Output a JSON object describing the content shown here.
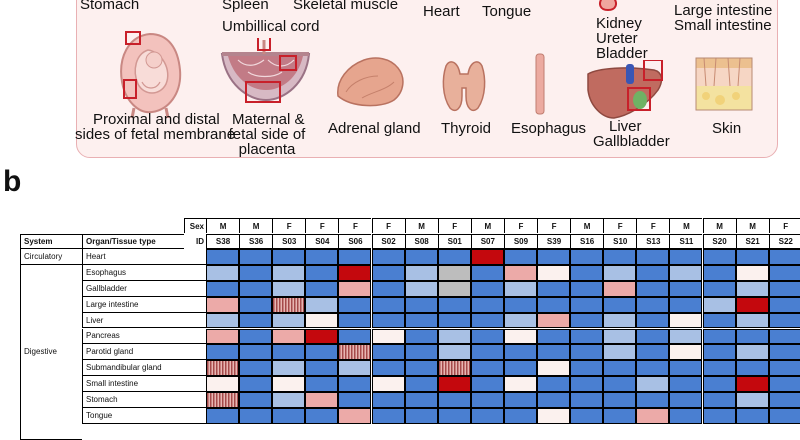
{
  "panel_a": {
    "labels": {
      "stomach": "Stomach",
      "spleen": "Spleen",
      "skeletal_muscle": "Skeletal muscle",
      "heart": "Heart",
      "tongue": "Tongue",
      "kidney": "Kidney",
      "ureter": "Ureter",
      "bladder": "Bladder",
      "large_intestine": "Large intestine",
      "small_intestine": "Small intestine",
      "umbilical_cord": "Umbillical cord",
      "fetal_membrane_1": "Proximal and distal",
      "fetal_membrane_2": "sides of fetal membrane",
      "placenta_1": "Maternal &",
      "placenta_2": "fetal side of",
      "placenta_3": "placenta",
      "adrenal": "Adrenal gland",
      "thyroid": "Thyroid",
      "esophagus": "Esophagus",
      "liver": "Liver",
      "gallbladder": "Gallbladder",
      "skin": "Skin"
    },
    "colors": {
      "panel_bg": "#fdf0ef",
      "panel_border": "#e9b0b3",
      "highlight": "#c8202a"
    }
  },
  "panel_b": {
    "letter": "b",
    "sex_label": "Sex",
    "id_label": "ID",
    "system_header": "System",
    "organ_header": "Organ/Tissue type",
    "sexes": [
      "M",
      "M",
      "F",
      "F",
      "F",
      "F",
      "M",
      "F",
      "M",
      "F",
      "F",
      "M",
      "F",
      "F",
      "M",
      "M",
      "M",
      "F"
    ],
    "ids": [
      "S38",
      "S36",
      "S03",
      "S04",
      "S06",
      "S02",
      "S08",
      "S01",
      "S07",
      "S09",
      "S39",
      "S16",
      "S10",
      "S13",
      "S11",
      "S20",
      "S21",
      "S22"
    ],
    "systems": [
      {
        "name": "Circulatory",
        "row_start": 0,
        "row_count": 1
      },
      {
        "name": "Digestive",
        "row_start": 1,
        "row_count": 11
      }
    ],
    "rows": [
      {
        "organ": "Heart",
        "values": [
          "b",
          "b",
          "b",
          "b",
          "b",
          "b",
          "b",
          "b",
          "r",
          "b",
          "b",
          "b",
          "b",
          "b",
          "b",
          "b",
          "b",
          "b"
        ]
      },
      {
        "organ": "Esophagus",
        "values": [
          "l",
          "b",
          "l",
          "b",
          "r",
          "b",
          "l",
          "g",
          "b",
          "p",
          "w",
          "b",
          "l",
          "b",
          "l",
          "b",
          "w",
          "b"
        ]
      },
      {
        "organ": "Gallbladder",
        "values": [
          "b",
          "b",
          "l",
          "b",
          "p",
          "b",
          "l",
          "g",
          "b",
          "l",
          "b",
          "b",
          "p",
          "b",
          "b",
          "b",
          "l",
          "b"
        ]
      },
      {
        "organ": "Large intestine",
        "values": [
          "p",
          "b",
          "s",
          "l",
          "b",
          "b",
          "b",
          "b",
          "b",
          "b",
          "b",
          "b",
          "b",
          "b",
          "b",
          "l",
          "r",
          "b"
        ]
      },
      {
        "organ": "Liver",
        "values": [
          "l",
          "b",
          "l",
          "w",
          "b",
          "b",
          "b",
          "b",
          "b",
          "l",
          "p",
          "b",
          "l",
          "b",
          "w",
          "b",
          "l",
          "b"
        ]
      },
      {
        "organ": "Pancreas",
        "values": [
          "p",
          "b",
          "p",
          "r",
          "b",
          "w",
          "b",
          "l",
          "b",
          "w",
          "b",
          "b",
          "l",
          "b",
          "l",
          "b",
          "b",
          "b"
        ]
      },
      {
        "organ": "Parotid gland",
        "values": [
          "b",
          "b",
          "b",
          "b",
          "s",
          "b",
          "b",
          "l",
          "b",
          "b",
          "b",
          "b",
          "l",
          "b",
          "w",
          "b",
          "l",
          "b"
        ]
      },
      {
        "organ": "Submandibular gland",
        "values": [
          "s",
          "b",
          "l",
          "b",
          "l",
          "b",
          "b",
          "s",
          "b",
          "b",
          "w",
          "b",
          "b",
          "b",
          "b",
          "b",
          "b",
          "b"
        ]
      },
      {
        "organ": "Small intestine",
        "values": [
          "w",
          "b",
          "w",
          "b",
          "b",
          "w",
          "b",
          "r",
          "b",
          "w",
          "b",
          "b",
          "b",
          "l",
          "b",
          "b",
          "r",
          "b"
        ]
      },
      {
        "organ": "Stomach",
        "values": [
          "s",
          "b",
          "l",
          "p",
          "b",
          "b",
          "b",
          "b",
          "b",
          "b",
          "b",
          "b",
          "b",
          "b",
          "b",
          "b",
          "l",
          "b"
        ]
      },
      {
        "organ": "Tongue",
        "values": [
          "b",
          "b",
          "b",
          "b",
          "p",
          "b",
          "b",
          "b",
          "b",
          "b",
          "w",
          "b",
          "b",
          "p",
          "b",
          "b",
          "b",
          "b"
        ]
      }
    ],
    "palette": {
      "b": "#4a7fd1",
      "l": "#a8c0e4",
      "w": "#fbf1ee",
      "p": "#ecaaa8",
      "r": "#c4080d",
      "g": "#bdbdbd",
      "s": "#b56c6a"
    }
  }
}
